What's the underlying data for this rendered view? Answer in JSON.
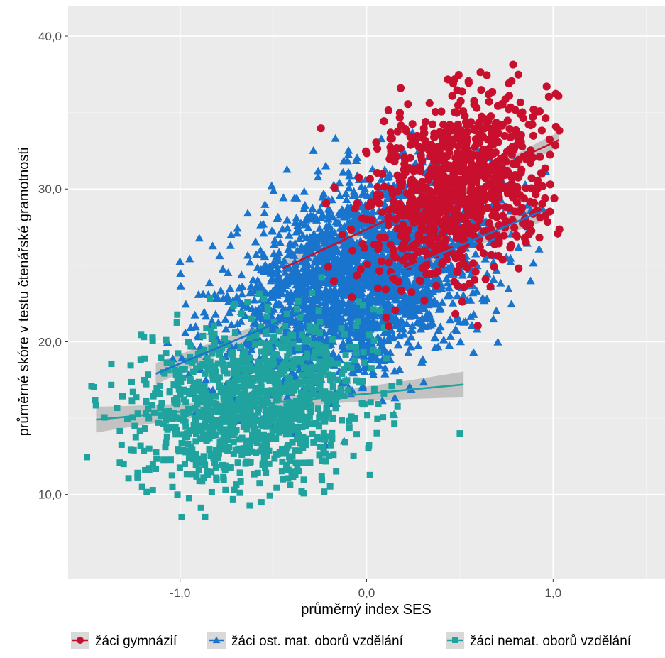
{
  "chart_data": {
    "type": "scatter",
    "title": "",
    "xlabel": "průměrný index SES",
    "ylabel": "průměrné skóre v testu čtenářské gramotnosti",
    "xlim": [
      -1.6,
      1.6
    ],
    "ylim": [
      4.5,
      42.0
    ],
    "x_ticks": [
      -1.0,
      0.0,
      1.0
    ],
    "x_tick_labels": [
      "-1,0",
      "0,0",
      "1,0"
    ],
    "y_ticks": [
      10.0,
      20.0,
      30.0,
      40.0
    ],
    "y_tick_labels": [
      "10,0",
      "20,0",
      "30,0",
      "40,0"
    ],
    "grid": true,
    "background": "#ebebeb",
    "legend_position": "bottom",
    "series": [
      {
        "name": "žáci gymnázií",
        "color": "#c8102e",
        "marker": "circle",
        "trend": {
          "x": [
            -0.45,
            1.03
          ],
          "y": [
            24.8,
            33.2
          ],
          "ci_halfwidth": 0.55
        },
        "cloud": {
          "center": [
            0.5,
            30.2
          ],
          "spread": [
            0.25,
            3.0
          ],
          "x_range": [
            -0.45,
            1.05
          ],
          "y_range": [
            18.0,
            38.2
          ],
          "count": 950,
          "corr": 0.35
        }
      },
      {
        "name": "žáci ost. mat. oborů vzdělání",
        "color": "#1874cd",
        "marker": "triangle",
        "trend": {
          "x": [
            -1.13,
            0.95
          ],
          "y": [
            17.9,
            28.6
          ],
          "ci_halfwidth": 0.7
        },
        "cloud": {
          "center": [
            -0.05,
            24.0
          ],
          "spread": [
            0.35,
            3.4
          ],
          "x_range": [
            -1.13,
            0.97
          ],
          "y_range": [
            10.5,
            34.3
          ],
          "count": 2500,
          "corr": 0.4
        }
      },
      {
        "name": "žáci nemat. oborů vzdělání",
        "color": "#20a39e",
        "marker": "square",
        "trend": {
          "x": [
            -1.45,
            0.52
          ],
          "y": [
            14.9,
            17.2
          ],
          "ci_halfwidth": 0.85
        },
        "cloud": {
          "center": [
            -0.62,
            16.0
          ],
          "spread": [
            0.3,
            2.6
          ],
          "x_range": [
            -1.5,
            0.55
          ],
          "y_range": [
            8.3,
            26.5
          ],
          "count": 1200,
          "corr": 0.15
        }
      }
    ]
  }
}
